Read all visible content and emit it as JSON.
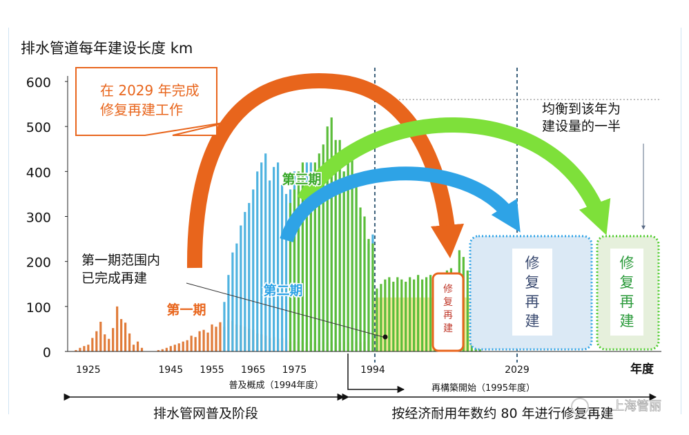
{
  "chart_data": {
    "type": "bar",
    "title": "排水管道每年建设长度",
    "y_unit": "km",
    "xlabel": "年度",
    "ylim": [
      0,
      600
    ],
    "y_ticks": [
      0,
      100,
      200,
      300,
      400,
      500,
      600
    ],
    "x_tick_labels": [
      "1925",
      "1945",
      "1955",
      "1965",
      "1975",
      "1994",
      "2029"
    ],
    "x_tick_years": [
      1925,
      1945,
      1955,
      1965,
      1975,
      1994,
      2029
    ],
    "x_range": [
      1920,
      2064
    ],
    "series": [
      {
        "name": "第一期",
        "color": "#e07b39",
        "x": [
          1922,
          1923,
          1924,
          1925,
          1926,
          1927,
          1928,
          1929,
          1930,
          1931,
          1932,
          1933,
          1934,
          1935,
          1936,
          1937,
          1938,
          1942,
          1943,
          1944,
          1945,
          1946,
          1947,
          1948,
          1949,
          1950,
          1951,
          1952,
          1953,
          1954,
          1955,
          1956,
          1957,
          1958,
          1959,
          1960,
          1961,
          1962,
          1963,
          1964,
          1965,
          1966,
          1967,
          1968,
          1969,
          1970,
          1971,
          1972,
          1973,
          1974,
          1975,
          1976,
          1977,
          1978,
          1979,
          1980,
          1981,
          1982,
          1983,
          1984,
          1985,
          1986,
          1987,
          1988,
          1989,
          1990,
          1991,
          1992,
          1993,
          1994
        ],
        "values": [
          3,
          8,
          12,
          15,
          30,
          45,
          66,
          38,
          28,
          52,
          100,
          72,
          64,
          40,
          15,
          22,
          8,
          3,
          5,
          8,
          12,
          15,
          18,
          22,
          25,
          35,
          32,
          45,
          48,
          42,
          60,
          55,
          65,
          55,
          70,
          68,
          60,
          58,
          55,
          50,
          48,
          40,
          38,
          35,
          30,
          32,
          28,
          30,
          25,
          22,
          25,
          22,
          25,
          20,
          22,
          20,
          18,
          22,
          20,
          22,
          18,
          20,
          22,
          20,
          25,
          22,
          20,
          22,
          25,
          28
        ]
      },
      {
        "name": "第二期",
        "color": "#4fb3e0",
        "x": [
          1958,
          1959,
          1960,
          1961,
          1962,
          1963,
          1964,
          1965,
          1966,
          1967,
          1968,
          1969,
          1970,
          1971,
          1972,
          1973,
          1974,
          1975,
          1976,
          1977,
          1978,
          1979,
          1980,
          1981,
          1982,
          1983,
          1984,
          1985,
          1986,
          1987,
          1988,
          1989,
          1990,
          1991,
          1992,
          1993,
          1994
        ],
        "values": [
          110,
          170,
          220,
          240,
          280,
          310,
          330,
          360,
          400,
          420,
          440,
          380,
          410,
          420,
          370,
          350,
          360,
          400,
          355,
          380,
          420,
          420,
          380,
          360,
          420,
          380,
          390,
          420,
          440,
          400,
          420,
          380,
          360,
          300,
          250,
          240,
          260
        ]
      },
      {
        "name": "第三期",
        "color": "#5bbd3a",
        "x": [
          1974,
          1975,
          1976,
          1977,
          1978,
          1979,
          1980,
          1981,
          1982,
          1983,
          1984,
          1985,
          1986,
          1987,
          1988,
          1989,
          1990,
          1991,
          1992,
          1993,
          1994
        ],
        "values": [
          330,
          360,
          400,
          420,
          330,
          370,
          420,
          440,
          460,
          500,
          520,
          470,
          470,
          400,
          420,
          440,
          380,
          320,
          300,
          250,
          240
        ]
      },
      {
        "name": "",
        "color": "#5bbd3a",
        "x": [
          1995,
          1996,
          1997,
          1998,
          1999,
          2000,
          2001,
          2002,
          2003,
          2004,
          2005,
          2006,
          2007,
          2008,
          2009,
          2010,
          2011,
          2012,
          2013,
          2014,
          2015,
          2016,
          2017,
          2018,
          2019,
          2020
        ],
        "values": [
          140,
          150,
          160,
          165,
          155,
          165,
          160,
          155,
          165,
          160,
          170,
          160,
          165,
          170,
          160,
          165,
          175,
          180,
          185,
          170,
          225,
          210,
          180,
          165,
          160,
          150
        ]
      }
    ],
    "annotations": {
      "callout_2029": "在 2029 年完成\n修复再建工作",
      "balance": "均衡到该年为\n建设量的一半",
      "completed": "第一期范围内\n已完成再建",
      "label_phase1": "第一期",
      "label_phase2": "第二期",
      "label_phase3": "第三期",
      "box_small": "修\n复\n再\n建",
      "box_blue": "修\n复\n再\n建",
      "box_green": "修\n复\n再\n建",
      "popularization": "普及概成（1994年度）",
      "reconstruction_start": "再構築開始（1995年度）",
      "stage_left": "排水管网普及阶段",
      "stage_right": "按经济耐用年数约 80 年进行修复再建",
      "watermark": "上海管丽"
    },
    "grid": false,
    "legend": "none"
  }
}
